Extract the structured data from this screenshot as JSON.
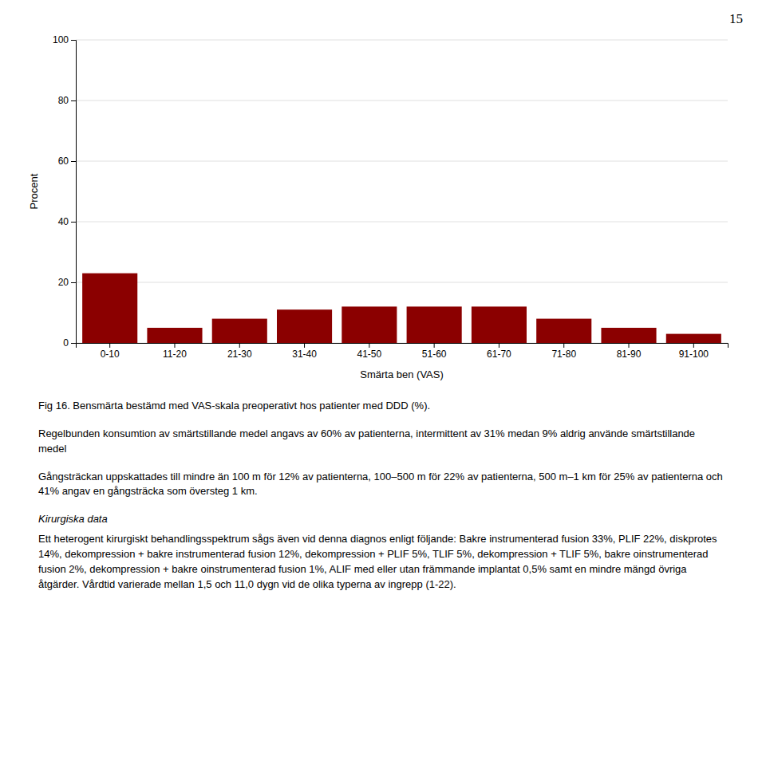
{
  "page_number": "15",
  "chart_data": {
    "type": "bar",
    "categories": [
      "0-10",
      "11-20",
      "21-30",
      "31-40",
      "41-50",
      "51-60",
      "61-70",
      "71-80",
      "81-90",
      "91-100"
    ],
    "values": [
      23,
      5,
      8,
      11,
      12,
      12,
      12,
      8,
      5,
      3
    ],
    "color": "#8B0000",
    "xlabel": "Smärta ben (VAS)",
    "ylabel": "Procent",
    "ylim": [
      0,
      100
    ],
    "yticks": [
      0,
      20,
      40,
      60,
      80,
      100
    ],
    "grid": true
  },
  "caption": "Fig 16. Bensmärta bestämd med VAS-skala preoperativt hos patienter med DDD (%).",
  "paragraphs": [
    "Regelbunden konsumtion av smärtstillande medel angavs av 60% av patienterna, intermittent av 31% medan 9% aldrig använde smärtstillande medel",
    "Gångsträckan uppskattades till mindre än 100 m för 12% av patienterna, 100–500 m för 22% av patienterna, 500 m–1 km för 25% av patienterna och 41% angav en gångsträcka som översteg 1 km."
  ],
  "subheading": "Kirurgiska data",
  "subheading_paragraphs": [
    "Ett heterogent kirurgiskt behandlingsspektrum sågs även vid denna diagnos enligt följande: Bakre instrumenterad fusion 33%, PLIF 22%, diskprotes 14%, dekompression + bakre instrumenterad fusion 12%, dekompression + PLIF 5%, TLIF 5%, dekompression + TLIF 5%, bakre oinstrumenterad fusion 2%, dekompression + bakre oinstrumenterad fusion 1%, ALIF med eller utan främmande implantat 0,5% samt en mindre mängd övriga åtgärder. Vårdtid varierade mellan 1,5 och 11,0 dygn vid de olika typerna av ingrepp (1-22)."
  ]
}
